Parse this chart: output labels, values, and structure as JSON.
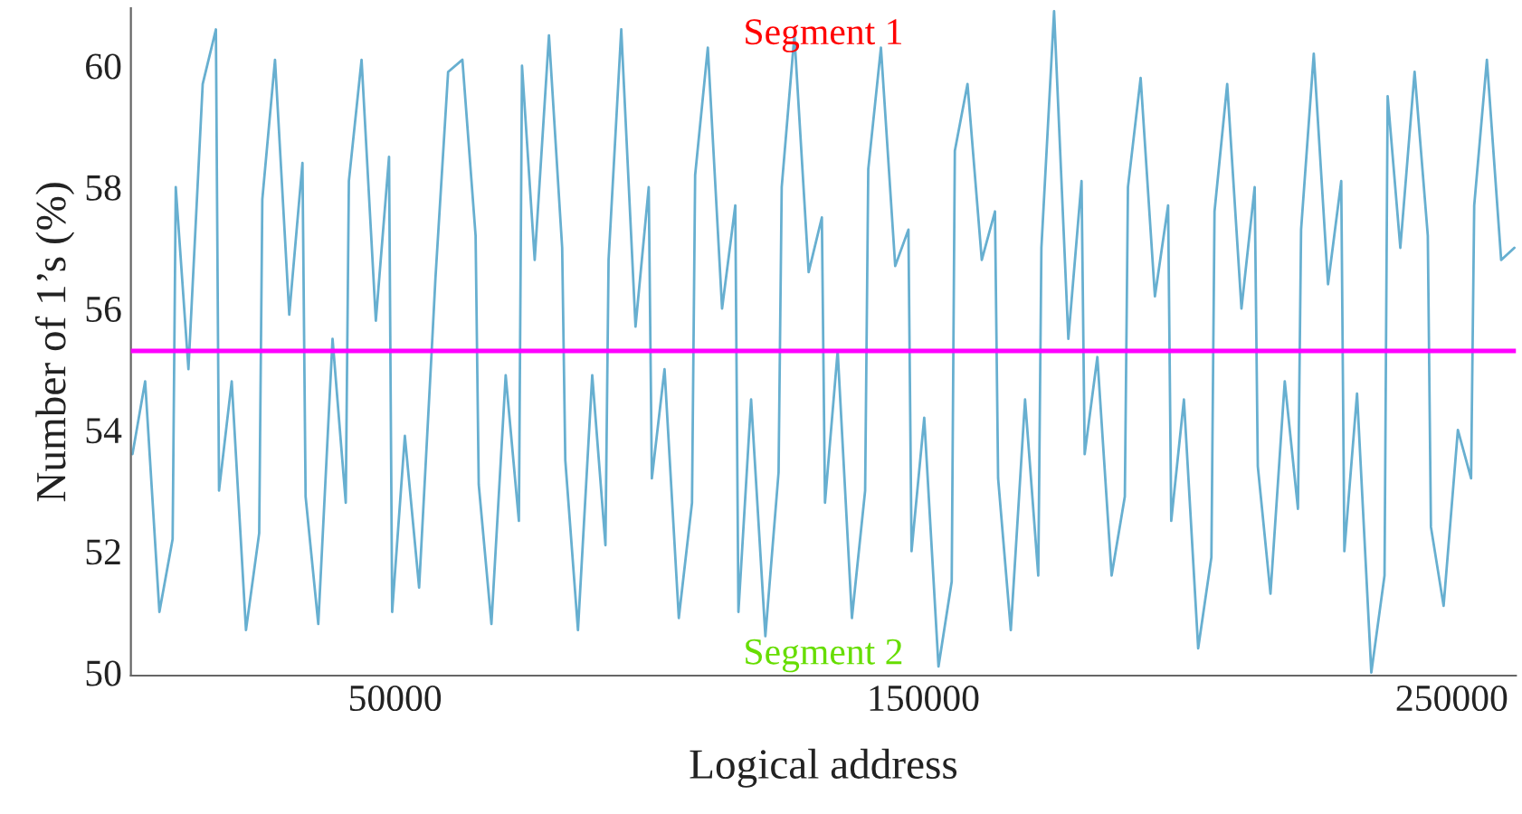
{
  "chart_data": {
    "type": "line",
    "xlabel": "Logical address",
    "ylabel": "Number of 1’s (%)",
    "annotations": [
      "Segment 1",
      "Segment 2"
    ],
    "xlim": [
      0,
      262144
    ],
    "xticks": [
      50000,
      150000,
      250000
    ],
    "ylim": [
      49.95,
      60.95
    ],
    "yticks": [
      50,
      52,
      54,
      56,
      58,
      60
    ],
    "grid": false,
    "legend": false,
    "marker": "none",
    "line_style": "solid",
    "ref_lines": [
      {
        "axis": "y",
        "value": 55.3,
        "label": null,
        "color": "#ff00ff"
      }
    ],
    "series": [
      {
        "color": "#67afd0",
        "x": [
          300,
          2700,
          5400,
          7900,
          8492,
          10892,
          13592,
          16092,
          16684,
          19084,
          21784,
          24284,
          24876,
          27276,
          29976,
          32476,
          33068,
          35468,
          38168,
          40668,
          41260,
          43660,
          46360,
          48860,
          49452,
          51852,
          54552,
          57052,
          57644,
          60044,
          62744,
          65244,
          65836,
          68236,
          70936,
          73436,
          74028,
          76428,
          79128,
          81628,
          82220,
          84620,
          87320,
          89820,
          90412,
          92812,
          95512,
          98012,
          98604,
          101004,
          103704,
          106204,
          106796,
          109196,
          111896,
          114396,
          114988,
          117388,
          120088,
          122588,
          123180,
          125580,
          128280,
          130780,
          131372,
          133772,
          136472,
          138972,
          139564,
          141964,
          144664,
          147164,
          147756,
          150156,
          152856,
          155356,
          155948,
          158348,
          161048,
          163548,
          164140,
          166540,
          169240,
          171740,
          172332,
          174732,
          177432,
          179932,
          180524,
          182924,
          185624,
          188124,
          188716,
          191116,
          193816,
          196316,
          196908,
          199308,
          202008,
          204508,
          205100,
          207500,
          210200,
          212700,
          213292,
          215692,
          218392,
          220892,
          221484,
          223884,
          226584,
          229084,
          229676,
          232076,
          234776,
          237276,
          237868,
          240268,
          242968,
          245468,
          246060,
          248460,
          251160,
          253660,
          254252,
          256652,
          259352,
          261852
        ],
        "values": [
          53.6,
          54.8,
          51.0,
          52.2,
          58.0,
          55.0,
          59.7,
          60.6,
          53.0,
          54.8,
          50.7,
          52.3,
          57.8,
          60.1,
          55.9,
          58.4,
          52.9,
          50.8,
          55.5,
          52.8,
          58.1,
          60.1,
          55.8,
          58.5,
          51.0,
          53.9,
          51.4,
          55.5,
          56.5,
          59.9,
          60.1,
          57.2,
          53.1,
          50.8,
          54.9,
          52.5,
          60.0,
          56.8,
          60.5,
          57.0,
          53.5,
          50.7,
          54.9,
          52.1,
          56.8,
          60.6,
          55.7,
          58.0,
          53.2,
          55.0,
          50.9,
          52.8,
          58.2,
          60.3,
          56.0,
          57.7,
          51.0,
          54.5,
          50.6,
          53.3,
          58.0,
          60.5,
          56.6,
          57.5,
          52.8,
          55.3,
          50.9,
          53.0,
          58.3,
          60.3,
          56.7,
          57.3,
          52.0,
          54.2,
          50.1,
          51.5,
          58.6,
          59.7,
          56.8,
          57.6,
          53.2,
          50.7,
          54.5,
          51.6,
          57.0,
          60.9,
          55.5,
          58.1,
          53.6,
          55.2,
          51.6,
          52.9,
          58.0,
          59.8,
          56.2,
          57.7,
          52.5,
          54.5,
          50.4,
          51.9,
          57.6,
          59.7,
          56.0,
          58.0,
          53.4,
          51.3,
          54.8,
          52.7,
          57.3,
          60.2,
          56.4,
          58.1,
          52.0,
          54.6,
          50.0,
          51.6,
          59.5,
          57.0,
          59.9,
          57.2,
          52.4,
          51.1,
          54.0,
          53.2,
          57.7,
          60.1,
          56.8,
          57.0
        ]
      }
    ]
  }
}
